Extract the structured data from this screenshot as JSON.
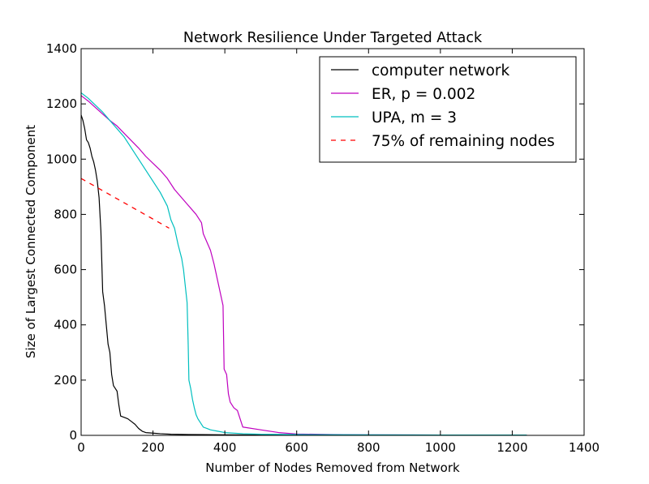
{
  "chart_data": {
    "type": "line",
    "title": "Network Resilience Under Targeted Attack",
    "xlabel": "Number of Nodes Removed from Network",
    "ylabel": "Size of Largest Connected Component",
    "xlim": [
      0,
      1400
    ],
    "ylim": [
      0,
      1400
    ],
    "x_ticks": [
      0,
      200,
      400,
      600,
      800,
      1000,
      1200,
      1400
    ],
    "y_ticks": [
      0,
      200,
      400,
      600,
      800,
      1000,
      1200,
      1400
    ],
    "grid": false,
    "legend_position": "top-right",
    "series": [
      {
        "name": "computer network",
        "color": "#000000",
        "style": "solid",
        "points": [
          [
            0,
            1160
          ],
          [
            5,
            1140
          ],
          [
            10,
            1110
          ],
          [
            15,
            1070
          ],
          [
            20,
            1060
          ],
          [
            25,
            1040
          ],
          [
            30,
            1010
          ],
          [
            35,
            990
          ],
          [
            40,
            960
          ],
          [
            45,
            920
          ],
          [
            50,
            860
          ],
          [
            55,
            740
          ],
          [
            60,
            520
          ],
          [
            65,
            470
          ],
          [
            70,
            400
          ],
          [
            75,
            330
          ],
          [
            80,
            300
          ],
          [
            85,
            220
          ],
          [
            90,
            180
          ],
          [
            95,
            170
          ],
          [
            100,
            160
          ],
          [
            105,
            110
          ],
          [
            110,
            70
          ],
          [
            120,
            65
          ],
          [
            130,
            60
          ],
          [
            140,
            50
          ],
          [
            150,
            40
          ],
          [
            160,
            25
          ],
          [
            170,
            15
          ],
          [
            180,
            10
          ],
          [
            200,
            8
          ],
          [
            220,
            6
          ],
          [
            250,
            4
          ],
          [
            300,
            3
          ],
          [
            400,
            2
          ],
          [
            600,
            1
          ],
          [
            1240,
            1
          ]
        ]
      },
      {
        "name": "ER, p = 0.002",
        "color": "#bf00bf",
        "style": "solid",
        "points": [
          [
            0,
            1230
          ],
          [
            20,
            1210
          ],
          [
            50,
            1175
          ],
          [
            80,
            1140
          ],
          [
            100,
            1120
          ],
          [
            130,
            1080
          ],
          [
            160,
            1040
          ],
          [
            180,
            1010
          ],
          [
            200,
            985
          ],
          [
            220,
            960
          ],
          [
            240,
            930
          ],
          [
            260,
            890
          ],
          [
            280,
            860
          ],
          [
            300,
            830
          ],
          [
            320,
            800
          ],
          [
            335,
            770
          ],
          [
            340,
            730
          ],
          [
            350,
            700
          ],
          [
            360,
            670
          ],
          [
            370,
            620
          ],
          [
            380,
            560
          ],
          [
            390,
            500
          ],
          [
            395,
            470
          ],
          [
            398,
            240
          ],
          [
            405,
            220
          ],
          [
            410,
            150
          ],
          [
            415,
            120
          ],
          [
            425,
            100
          ],
          [
            435,
            90
          ],
          [
            445,
            50
          ],
          [
            450,
            30
          ],
          [
            500,
            20
          ],
          [
            550,
            10
          ],
          [
            600,
            5
          ],
          [
            700,
            3
          ],
          [
            800,
            2
          ],
          [
            1000,
            1
          ],
          [
            1240,
            1
          ]
        ]
      },
      {
        "name": "UPA, m = 3",
        "color": "#00bfbf",
        "style": "solid",
        "points": [
          [
            0,
            1240
          ],
          [
            20,
            1220
          ],
          [
            40,
            1195
          ],
          [
            60,
            1170
          ],
          [
            80,
            1140
          ],
          [
            100,
            1110
          ],
          [
            120,
            1080
          ],
          [
            140,
            1040
          ],
          [
            160,
            1000
          ],
          [
            180,
            960
          ],
          [
            200,
            920
          ],
          [
            220,
            880
          ],
          [
            240,
            830
          ],
          [
            250,
            780
          ],
          [
            260,
            750
          ],
          [
            270,
            690
          ],
          [
            280,
            640
          ],
          [
            285,
            600
          ],
          [
            290,
            540
          ],
          [
            295,
            480
          ],
          [
            298,
            330
          ],
          [
            300,
            200
          ],
          [
            305,
            170
          ],
          [
            310,
            130
          ],
          [
            315,
            100
          ],
          [
            320,
            75
          ],
          [
            325,
            60
          ],
          [
            330,
            50
          ],
          [
            340,
            30
          ],
          [
            350,
            25
          ],
          [
            360,
            20
          ],
          [
            380,
            15
          ],
          [
            400,
            10
          ],
          [
            450,
            6
          ],
          [
            500,
            4
          ],
          [
            600,
            3
          ],
          [
            800,
            2
          ],
          [
            1000,
            1
          ],
          [
            1240,
            1
          ]
        ]
      },
      {
        "name": "75% of remaining nodes",
        "color": "#ff0000",
        "style": "dashed",
        "points": [
          [
            0,
            930
          ],
          [
            245,
            750
          ]
        ]
      }
    ]
  }
}
